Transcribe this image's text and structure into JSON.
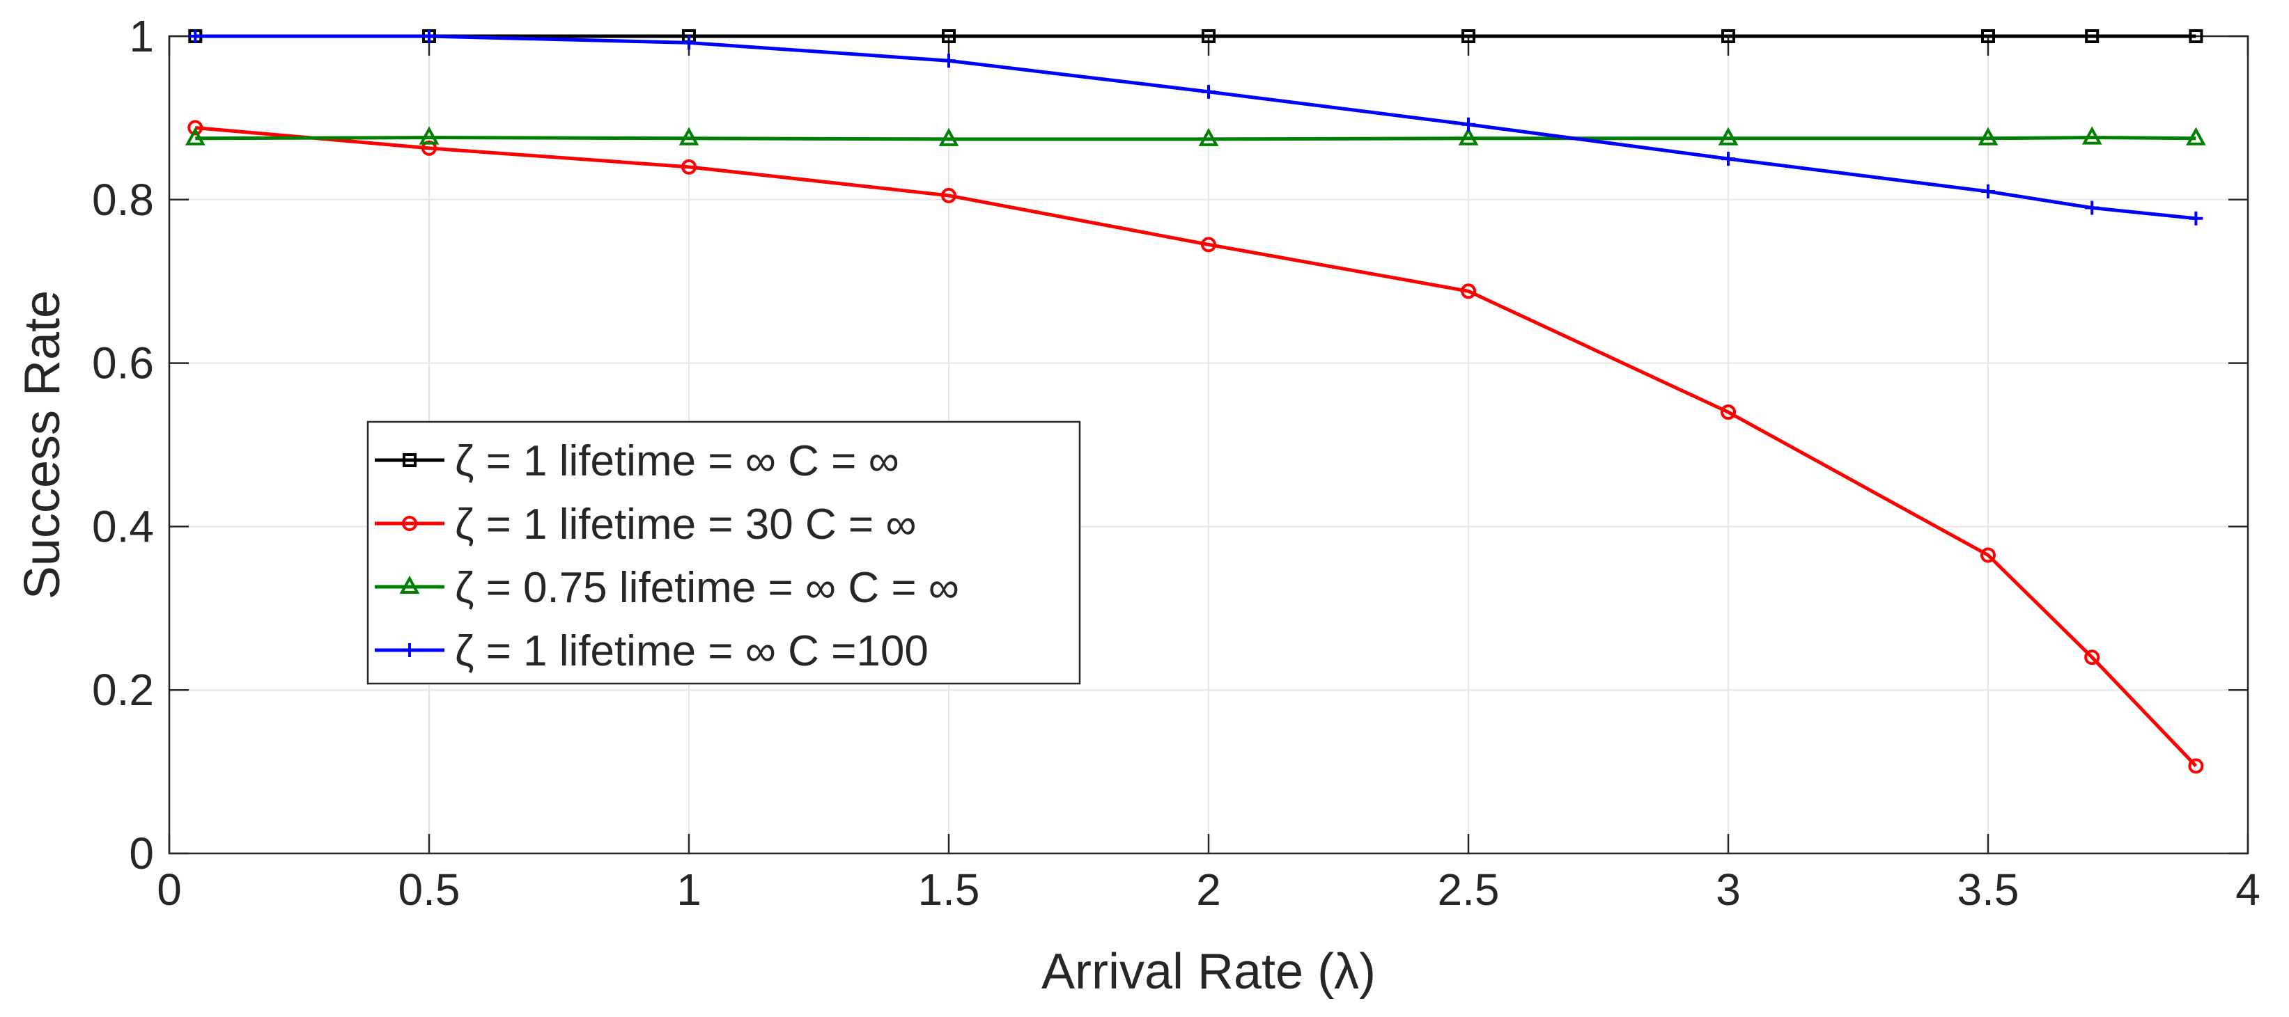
{
  "chart_data": {
    "type": "line",
    "title": "",
    "xlabel": "Arrival Rate (λ)",
    "ylabel": "Success Rate",
    "xlim": [
      0,
      4
    ],
    "ylim": [
      0,
      1
    ],
    "xticks": [
      0,
      0.5,
      1,
      1.5,
      2,
      2.5,
      3,
      3.5,
      4
    ],
    "xtick_labels": [
      "0",
      "0.5",
      "1",
      "1.5",
      "2",
      "2.5",
      "3",
      "3.5",
      "4"
    ],
    "yticks": [
      0,
      0.2,
      0.4,
      0.6,
      0.8,
      1
    ],
    "ytick_labels": [
      "0",
      "0.2",
      "0.4",
      "0.6",
      "0.8",
      "1"
    ],
    "grid": true,
    "legend_position": "center-left",
    "x": [
      0.05,
      0.5,
      1,
      1.5,
      2,
      2.5,
      3,
      3.5,
      3.7,
      3.9
    ],
    "series": [
      {
        "name": "ζ = 1 lifetime = ∞ C = ∞",
        "color": "#000000",
        "marker": "square",
        "values": [
          1.0,
          1.0,
          1.0,
          1.0,
          1.0,
          1.0,
          1.0,
          1.0,
          1.0,
          1.0
        ]
      },
      {
        "name": "ζ = 1 lifetime = 30 C = ∞",
        "color": "#ff0000",
        "marker": "circle",
        "values": [
          0.888,
          0.863,
          0.84,
          0.805,
          0.745,
          0.688,
          0.54,
          0.365,
          0.24,
          0.107
        ]
      },
      {
        "name": "ζ = 0.75 lifetime = ∞ C = ∞",
        "color": "#008000",
        "marker": "triangle",
        "values": [
          0.875,
          0.876,
          0.875,
          0.874,
          0.874,
          0.875,
          0.875,
          0.875,
          0.876,
          0.875
        ]
      },
      {
        "name": "ζ = 1 lifetime = ∞ C =100",
        "color": "#0000ff",
        "marker": "plus",
        "values": [
          1.0,
          1.0,
          0.992,
          0.97,
          0.932,
          0.892,
          0.85,
          0.81,
          0.79,
          0.777
        ]
      }
    ]
  }
}
